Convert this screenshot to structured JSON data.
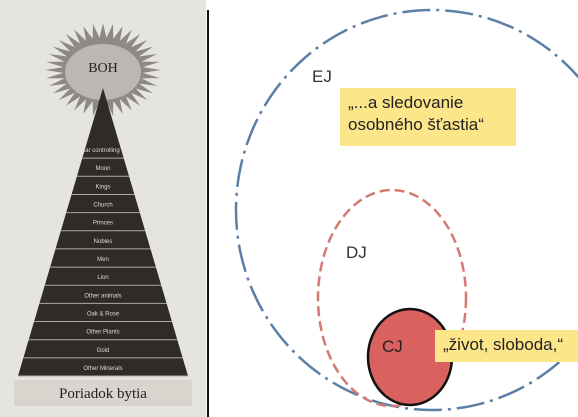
{
  "pyramid": {
    "top": "BOH",
    "levels": [
      "Star controlling of",
      "Moon",
      "Kings",
      "Church",
      "Princes",
      "Nobles",
      "Men",
      "Lion",
      "Other animals",
      "Oak & Rose",
      "Other Plants",
      "Gold",
      "Other Minerals"
    ],
    "caption": "Poriadok bytia"
  },
  "circles": {
    "outer": "EJ",
    "middle": "DJ",
    "inner": "CJ"
  },
  "quotes": {
    "outer": "„...a sledovanie osobného šťastia“",
    "inner": "„život, sloboda,“"
  }
}
